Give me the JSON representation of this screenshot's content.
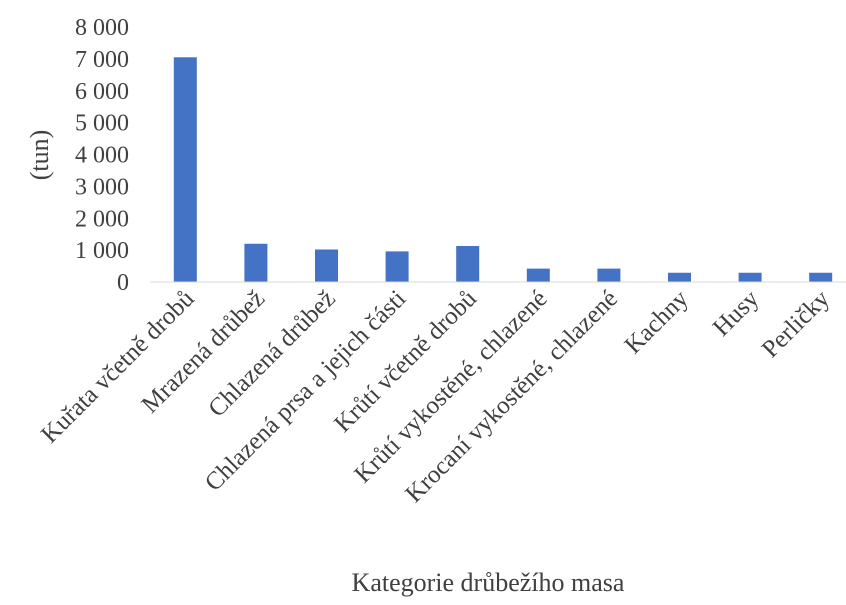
{
  "chart_data": {
    "type": "bar",
    "title": "",
    "xlabel": "Kategorie drůbežího masa",
    "ylabel": "(tun)",
    "ylim": [
      0,
      8000
    ],
    "yticks": [
      0,
      1000,
      2000,
      3000,
      4000,
      5000,
      6000,
      7000,
      8000
    ],
    "ytick_labels": [
      "0",
      "1 000",
      "2 000",
      "3 000",
      "4 000",
      "5 000",
      "6 000",
      "7 000",
      "8 000"
    ],
    "grid": false,
    "legend": "none",
    "bar_color": "#4472C4",
    "categories": [
      "Kuřata včetně drobů",
      "Mrazená drůbež",
      "Chlazená drůbež",
      "Chlazená prsa a jejich části",
      "Krůtí včetně drobů",
      "Krůtí vykostěné, chlazené",
      "Krocaní vykostěné, chlazené",
      "Kachny",
      "Husy",
      "Perličky"
    ],
    "values": [
      7050,
      1200,
      1020,
      960,
      1130,
      420,
      420,
      290,
      290,
      290
    ]
  }
}
